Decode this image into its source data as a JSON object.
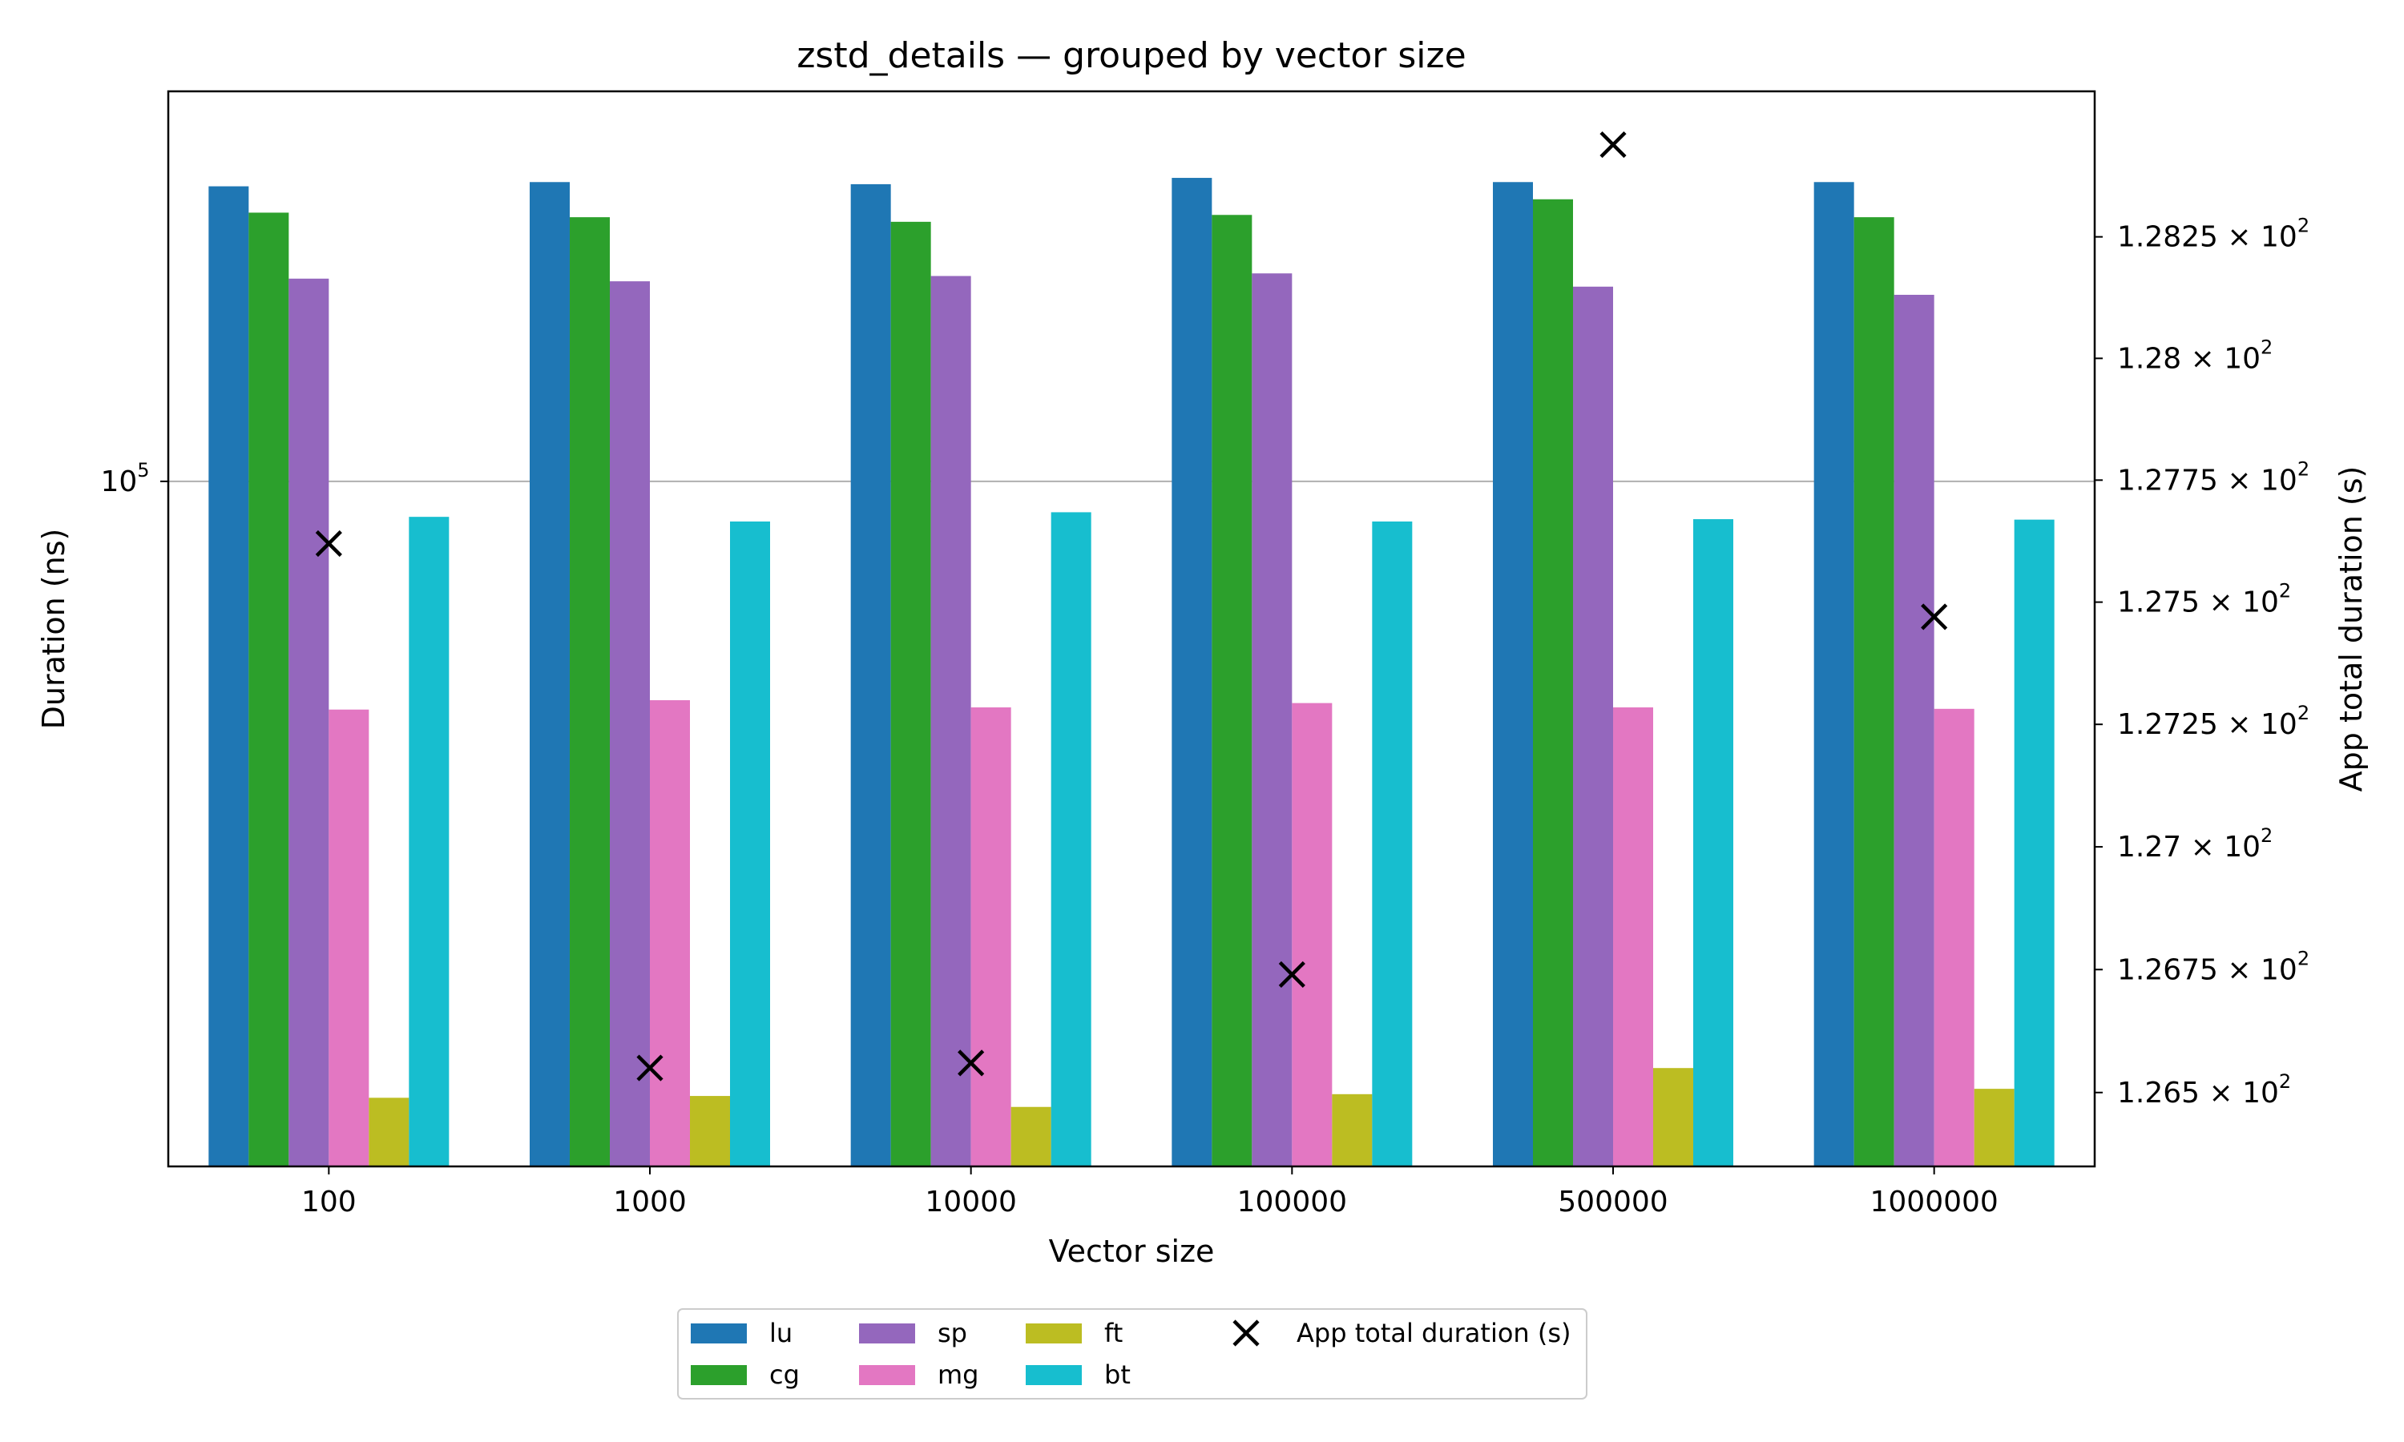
{
  "chart_data": {
    "type": "bar",
    "title": "zstd_details — grouped by vector size",
    "xlabel": "Vector size",
    "ylabel": "Duration (ns)",
    "y2label": "App total duration (s)",
    "y_scale": "log",
    "y2_scale": "log",
    "grid": "horizontal major lines on left axis",
    "legend_placement": "below plot, centered",
    "categories": [
      "100",
      "1000",
      "10000",
      "100000",
      "500000",
      "1000000"
    ],
    "ylim": [
      20000,
      250000
    ],
    "y2lim": [
      126.35,
      128.55
    ],
    "y_ticks": [
      {
        "value": 100000,
        "base": "10",
        "exp": "5"
      }
    ],
    "y2_ticks": [
      {
        "value": 126.5,
        "mant": "1.265",
        "base": "10",
        "exp": "2"
      },
      {
        "value": 126.75,
        "mant": "1.2675",
        "base": "10",
        "exp": "2"
      },
      {
        "value": 127.0,
        "mant": "1.27",
        "base": "10",
        "exp": "2"
      },
      {
        "value": 127.25,
        "mant": "1.2725",
        "base": "10",
        "exp": "2"
      },
      {
        "value": 127.5,
        "mant": "1.275",
        "base": "10",
        "exp": "2"
      },
      {
        "value": 127.75,
        "mant": "1.2775",
        "base": "10",
        "exp": "2"
      },
      {
        "value": 128.0,
        "mant": "1.28",
        "base": "10",
        "exp": "2"
      },
      {
        "value": 128.25,
        "mant": "1.2825",
        "base": "10",
        "exp": "2"
      }
    ],
    "series": [
      {
        "name": "lu",
        "color": "#1f77b4",
        "values": [
          200000,
          202000,
          201000,
          204000,
          202000,
          202000
        ]
      },
      {
        "name": "cg",
        "color": "#2ca02c",
        "values": [
          188000,
          186000,
          184000,
          187000,
          194000,
          186000
        ]
      },
      {
        "name": "sp",
        "color": "#9467bd",
        "values": [
          161000,
          160000,
          162000,
          163000,
          158000,
          155000
        ]
      },
      {
        "name": "mg",
        "color": "#e377c2",
        "values": [
          58500,
          59800,
          58800,
          59400,
          58800,
          58600
        ]
      },
      {
        "name": "ft",
        "color": "#bcbd22",
        "values": [
          23500,
          23600,
          23000,
          23700,
          25200,
          24000
        ]
      },
      {
        "name": "bt",
        "color": "#17becf",
        "values": [
          92000,
          91000,
          93000,
          91000,
          91500,
          91400
        ]
      }
    ],
    "app_total": {
      "name": "App total duration (s)",
      "marker": "x",
      "color": "#000000",
      "values": [
        127.62,
        126.55,
        126.56,
        126.74,
        128.44,
        127.47
      ]
    }
  }
}
